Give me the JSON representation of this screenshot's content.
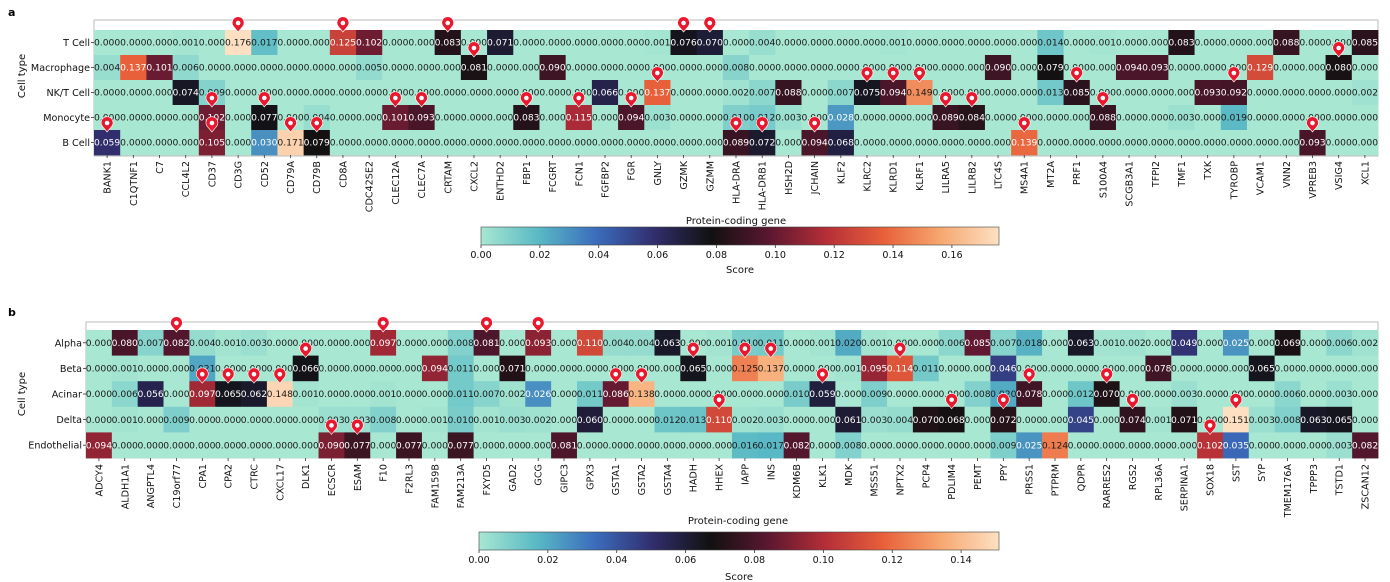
{
  "colormap": [
    "#a8e7d2",
    "#59b9c5",
    "#3b6dbd",
    "#312e6e",
    "#111111",
    "#5a1730",
    "#b52e38",
    "#e8603a",
    "#f7a871",
    "#fde0c2"
  ],
  "marker_color": "#e8192e",
  "chart_data": [
    {
      "type": "heatmap",
      "panel_label": "a",
      "ylabel": "Cell type",
      "xlabel": "Protein-coding gene",
      "colorbar_label": "Score",
      "colorbar_range": [
        0,
        0.176
      ],
      "colorbar_ticks": [
        "0.00",
        "0.02",
        "0.04",
        "0.06",
        "0.08",
        "0.10",
        "0.12",
        "0.14",
        "0.16"
      ],
      "rows": [
        "T Cell",
        "Macrophage",
        "NK/T Cell",
        "Monocyte",
        "B Cell"
      ],
      "columns": [
        "BANK1",
        "C1QTNF1",
        "C7",
        "CCL4L2",
        "CD37",
        "CD3G",
        "CD52",
        "CD79A",
        "CD79B",
        "CD8A",
        "CDC42SE2",
        "CLEC12A",
        "CLEC7A",
        "CRTAM",
        "CXCL2",
        "ENTHD2",
        "FBP1",
        "FCGRT",
        "FCN1",
        "FGFBP2",
        "FGR",
        "GNLY",
        "GZMK",
        "GZMM",
        "HLA-DRA",
        "HLA-DRB1",
        "HSH2D",
        "JCHAIN",
        "KLF2",
        "KLRC2",
        "KLRD1",
        "KLRF1",
        "LILRA5",
        "LILRB2",
        "LTC4S",
        "MS4A1",
        "MT2A",
        "PRF1",
        "S100A4",
        "SCGB3A1",
        "TFPI2",
        "TMF1",
        "TXK",
        "TYROBP",
        "VCAM1",
        "VNN2",
        "VPREB3",
        "VSIG4",
        "XCL1"
      ],
      "values": [
        [
          "0.000",
          "0.000",
          "0.000",
          "0.001",
          "0.000",
          "0.176",
          "0.017",
          "0.000",
          "0.000",
          "0.125",
          "0.102",
          "0.000",
          "0.000",
          "0.083",
          "0.000",
          "0.071",
          "0.000",
          "0.000",
          "0.000",
          "0.000",
          "0.000",
          "0.001",
          "0.076",
          "0.070",
          "0.000",
          "0.004",
          "0.000",
          "0.000",
          "0.000",
          "0.000",
          "0.001",
          "0.000",
          "0.000",
          "0.000",
          "0.000",
          "0.000",
          "0.014",
          "0.000",
          "0.001",
          "0.000",
          "0.000",
          "0.083",
          "0.000",
          "0.000",
          "0.000",
          "0.088",
          "0.000",
          "0.000",
          "0.085"
        ],
        [
          "0.004",
          "0.137",
          "0.101",
          "0.006",
          "0.000",
          "0.000",
          "0.000",
          "0.000",
          "0.000",
          "0.000",
          "0.005",
          "0.000",
          "0.000",
          "0.000",
          "0.081",
          "0.000",
          "0.000",
          "0.090",
          "0.000",
          "0.000",
          "0.000",
          "0.000",
          "0.000",
          "0.000",
          "0.008",
          "0.000",
          "0.000",
          "0.000",
          "0.000",
          "0.000",
          "0.000",
          "0.000",
          "0.000",
          "0.000",
          "0.090",
          "0.000",
          "0.079",
          "0.000",
          "0.000",
          "0.094",
          "0.093",
          "0.000",
          "0.000",
          "0.000",
          "0.129",
          "0.000",
          "0.000",
          "0.080",
          "0.000"
        ],
        [
          "0.000",
          "0.000",
          "0.000",
          "0.074",
          "0.009",
          "0.000",
          "0.000",
          "0.000",
          "0.000",
          "0.000",
          "0.000",
          "0.000",
          "0.000",
          "0.000",
          "0.000",
          "0.000",
          "0.000",
          "0.000",
          "0.000",
          "0.066",
          "0.000",
          "0.137",
          "0.000",
          "0.000",
          "0.002",
          "0.007",
          "0.088",
          "0.000",
          "0.007",
          "0.075",
          "0.094",
          "0.149",
          "0.000",
          "0.000",
          "0.000",
          "0.000",
          "0.013",
          "0.085",
          "0.000",
          "0.000",
          "0.000",
          "0.000",
          "0.093",
          "0.092",
          "0.000",
          "0.000",
          "0.000",
          "0.000",
          "0.002"
        ],
        [
          "0.000",
          "0.000",
          "0.000",
          "0.000",
          "0.102",
          "0.000",
          "0.077",
          "0.000",
          "0.004",
          "0.000",
          "0.000",
          "0.101",
          "0.093",
          "0.000",
          "0.000",
          "0.000",
          "0.083",
          "0.000",
          "0.115",
          "0.000",
          "0.094",
          "0.003",
          "0.000",
          "0.000",
          "0.010",
          "0.012",
          "0.003",
          "0.000",
          "0.028",
          "0.000",
          "0.000",
          "0.000",
          "0.089",
          "0.084",
          "0.000",
          "0.000",
          "0.000",
          "0.000",
          "0.088",
          "0.000",
          "0.000",
          "0.003",
          "0.000",
          "0.019",
          "0.000",
          "0.000",
          "0.000",
          "0.000",
          "0.000"
        ],
        [
          "0.059",
          "0.000",
          "0.000",
          "0.000",
          "0.105",
          "0.000",
          "0.030",
          "0.171",
          "0.079",
          "0.000",
          "0.000",
          "0.000",
          "0.000",
          "0.000",
          "0.000",
          "0.000",
          "0.000",
          "0.000",
          "0.000",
          "0.000",
          "0.000",
          "0.000",
          "0.000",
          "0.000",
          "0.089",
          "0.072",
          "0.000",
          "0.094",
          "0.068",
          "0.000",
          "0.000",
          "0.000",
          "0.000",
          "0.000",
          "0.000",
          "0.139",
          "0.000",
          "0.000",
          "0.000",
          "0.000",
          "0.000",
          "0.000",
          "0.000",
          "0.000",
          "0.000",
          "0.000",
          "0.093",
          "0.000",
          "0.000"
        ]
      ],
      "markers": [
        [
          0,
          5
        ],
        [
          0,
          9
        ],
        [
          0,
          13
        ],
        [
          0,
          22
        ],
        [
          0,
          23
        ],
        [
          1,
          14
        ],
        [
          1,
          47
        ],
        [
          2,
          21
        ],
        [
          2,
          29
        ],
        [
          2,
          30
        ],
        [
          2,
          31
        ],
        [
          2,
          37
        ],
        [
          2,
          43
        ],
        [
          3,
          4
        ],
        [
          3,
          6
        ],
        [
          3,
          11
        ],
        [
          3,
          12
        ],
        [
          3,
          16
        ],
        [
          3,
          18
        ],
        [
          3,
          20
        ],
        [
          3,
          32
        ],
        [
          3,
          33
        ],
        [
          3,
          38
        ],
        [
          4,
          0
        ],
        [
          4,
          4
        ],
        [
          4,
          7
        ],
        [
          4,
          8
        ],
        [
          4,
          24
        ],
        [
          4,
          25
        ],
        [
          4,
          27
        ],
        [
          4,
          35
        ],
        [
          4,
          46
        ]
      ]
    },
    {
      "type": "heatmap",
      "panel_label": "b",
      "ylabel": "Cell type",
      "xlabel": "Protein-coding gene",
      "colorbar_label": "Score",
      "colorbar_range": [
        0,
        0.151
      ],
      "colorbar_ticks": [
        "0.00",
        "0.02",
        "0.04",
        "0.06",
        "0.08",
        "0.10",
        "0.12",
        "0.14"
      ],
      "rows": [
        "Alpha",
        "Beta",
        "Acinar",
        "Delta",
        "Endothelial"
      ],
      "columns": [
        "ADCY4",
        "ALDH1A1",
        "ANGPTL4",
        "C19orf77",
        "CPA1",
        "CPA2",
        "CTRC",
        "CXCL17",
        "DLK1",
        "ECSCR",
        "ESAM",
        "F10",
        "F2RL3",
        "FAM159B",
        "FAM213A",
        "FXYD5",
        "GAD2",
        "GCG",
        "GIPC3",
        "GPX3",
        "GSTA1",
        "GSTA2",
        "GSTA4",
        "HADH",
        "HHEX",
        "IAPP",
        "INS",
        "KDM6B",
        "KLK1",
        "MDK",
        "MSS51",
        "NPTX2",
        "PCP4",
        "PDLIM4",
        "PEMT",
        "PPY",
        "PRSS1",
        "PTPRM",
        "QDPR",
        "RARRES2",
        "RGS2",
        "RPL36A",
        "SERPINA1",
        "SOX18",
        "SST",
        "SYP",
        "TMEM176A",
        "TPPP3",
        "TSTD1",
        "ZSCAN12"
      ],
      "values": [
        [
          "0.000",
          "0.080",
          "0.007",
          "0.082",
          "0.004",
          "0.001",
          "0.003",
          "0.000",
          "0.000",
          "0.000",
          "0.000",
          "0.097",
          "0.000",
          "0.000",
          "0.008",
          "0.081",
          "0.000",
          "0.093",
          "0.000",
          "0.110",
          "0.004",
          "0.004",
          "0.063",
          "0.000",
          "0.001",
          "0.010",
          "0.011",
          "0.000",
          "0.001",
          "0.020",
          "0.001",
          "0.000",
          "0.000",
          "0.006",
          "0.085",
          "0.007",
          "0.018",
          "0.000",
          "0.063",
          "0.001",
          "0.002",
          "0.000",
          "0.049",
          "0.000",
          "0.025",
          "0.000",
          "0.069",
          "0.000",
          "0.006",
          "0.002"
        ],
        [
          "0.000",
          "0.001",
          "0.000",
          "0.000",
          "0.021",
          "0.000",
          "0.000",
          "0.000",
          "0.066",
          "0.000",
          "0.000",
          "0.000",
          "0.000",
          "0.094",
          "0.011",
          "0.000",
          "0.071",
          "0.000",
          "0.000",
          "0.000",
          "0.000",
          "0.000",
          "0.000",
          "0.065",
          "0.000",
          "0.125",
          "0.137",
          "0.000",
          "0.000",
          "0.001",
          "0.095",
          "0.114",
          "0.011",
          "0.000",
          "0.000",
          "0.046",
          "0.000",
          "0.000",
          "0.000",
          "0.000",
          "0.000",
          "0.078",
          "0.000",
          "0.000",
          "0.000",
          "0.065",
          "0.000",
          "0.000",
          "0.000",
          "0.000"
        ],
        [
          "0.000",
          "0.006",
          "0.056",
          "0.000",
          "0.097",
          "0.065",
          "0.062",
          "0.148",
          "0.001",
          "0.000",
          "0.000",
          "0.001",
          "0.000",
          "0.000",
          "0.011",
          "0.007",
          "0.002",
          "0.026",
          "0.000",
          "0.011",
          "0.086",
          "0.138",
          "0.000",
          "0.000",
          "0.000",
          "0.000",
          "0.000",
          "0.010",
          "0.059",
          "0.000",
          "0.009",
          "0.000",
          "0.000",
          "0.000",
          "0.008",
          "0.020",
          "0.078",
          "0.000",
          "0.012",
          "0.070",
          "0.000",
          "0.000",
          "0.003",
          "0.000",
          "0.000",
          "0.000",
          "0.006",
          "0.000",
          "0.003",
          "0.000"
        ],
        [
          "0.000",
          "0.001",
          "0.000",
          "0.009",
          "0.000",
          "0.000",
          "0.000",
          "0.000",
          "0.000",
          "0.003",
          "0.003",
          "0.008",
          "0.000",
          "0.001",
          "0.010",
          "0.001",
          "0.003",
          "0.002",
          "0.000",
          "0.060",
          "0.000",
          "0.000",
          "0.012",
          "0.013",
          "0.110",
          "0.002",
          "0.003",
          "0.000",
          "0.000",
          "0.061",
          "0.003",
          "0.004",
          "0.070",
          "0.068",
          "0.000",
          "0.072",
          "0.000",
          "0.000",
          "0.045",
          "0.000",
          "0.074",
          "0.001",
          "0.071",
          "0.000",
          "0.151",
          "0.003",
          "0.008",
          "0.063",
          "0.065",
          "0.000"
        ],
        [
          "0.094",
          "0.000",
          "0.000",
          "0.000",
          "0.000",
          "0.000",
          "0.000",
          "0.000",
          "0.000",
          "0.090",
          "0.077",
          "0.000",
          "0.077",
          "0.000",
          "0.077",
          "0.000",
          "0.000",
          "0.000",
          "0.081",
          "0.000",
          "0.000",
          "0.000",
          "0.000",
          "0.000",
          "0.000",
          "0.016",
          "0.017",
          "0.082",
          "0.000",
          "0.008",
          "0.000",
          "0.000",
          "0.000",
          "0.000",
          "0.000",
          "0.009",
          "0.025",
          "0.124",
          "0.000",
          "0.000",
          "0.000",
          "0.000",
          "0.000",
          "0.102",
          "0.035",
          "0.000",
          "0.000",
          "0.000",
          "0.003",
          "0.082"
        ]
      ],
      "markers": [
        [
          0,
          3
        ],
        [
          0,
          11
        ],
        [
          0,
          15
        ],
        [
          0,
          17
        ],
        [
          1,
          8
        ],
        [
          1,
          23
        ],
        [
          1,
          25
        ],
        [
          1,
          26
        ],
        [
          1,
          31
        ],
        [
          2,
          4
        ],
        [
          2,
          5
        ],
        [
          2,
          6
        ],
        [
          2,
          7
        ],
        [
          2,
          20
        ],
        [
          2,
          21
        ],
        [
          2,
          28
        ],
        [
          2,
          36
        ],
        [
          2,
          39
        ],
        [
          3,
          24
        ],
        [
          3,
          33
        ],
        [
          3,
          35
        ],
        [
          3,
          40
        ],
        [
          3,
          44
        ],
        [
          4,
          9
        ],
        [
          4,
          10
        ],
        [
          4,
          43
        ]
      ]
    }
  ]
}
